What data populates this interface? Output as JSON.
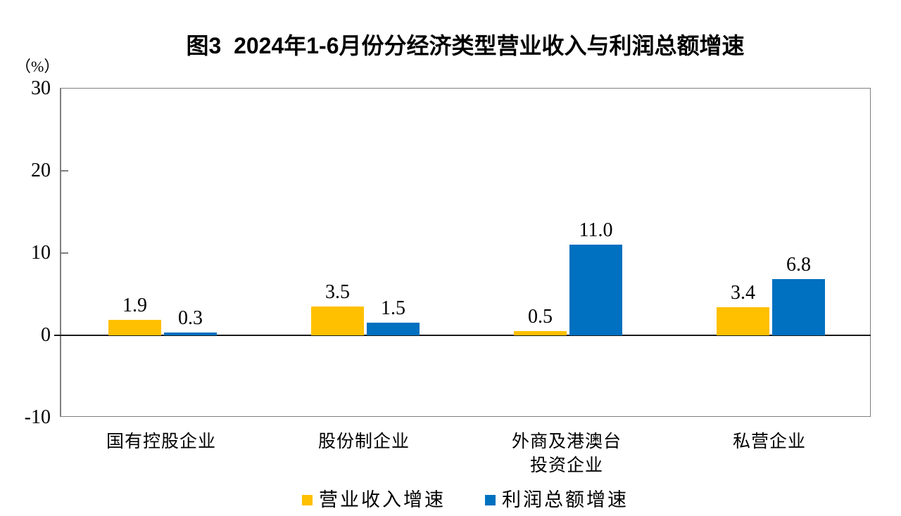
{
  "chart_data": {
    "type": "bar",
    "title": "图3  2024年1-6月份分经济类型营业收入与利润总额增速",
    "unit_label": "（%）",
    "categories": [
      "国有控股企业",
      "股份制企业",
      "外商及港澳台\n投资企业",
      "私营企业"
    ],
    "series": [
      {
        "name": "营业收入增速",
        "color": "#FFC000",
        "values": [
          1.9,
          3.5,
          0.5,
          3.4
        ],
        "value_labels": [
          "1.9",
          "3.5",
          "0.5",
          "3.4"
        ]
      },
      {
        "name": "利润总额增速",
        "color": "#0070C0",
        "values": [
          0.3,
          1.5,
          11.0,
          6.8
        ],
        "value_labels": [
          "0.3",
          "1.5",
          "11.0",
          "6.8"
        ]
      }
    ],
    "ylim": [
      -10,
      30
    ],
    "yticks": [
      30,
      20,
      10,
      0,
      -10
    ],
    "grid": false,
    "legend_position": "bottom"
  },
  "style": {
    "frame_color": "#7f7f7f",
    "zero_line_color": "#1a1a1a",
    "text_color": "#000000"
  }
}
